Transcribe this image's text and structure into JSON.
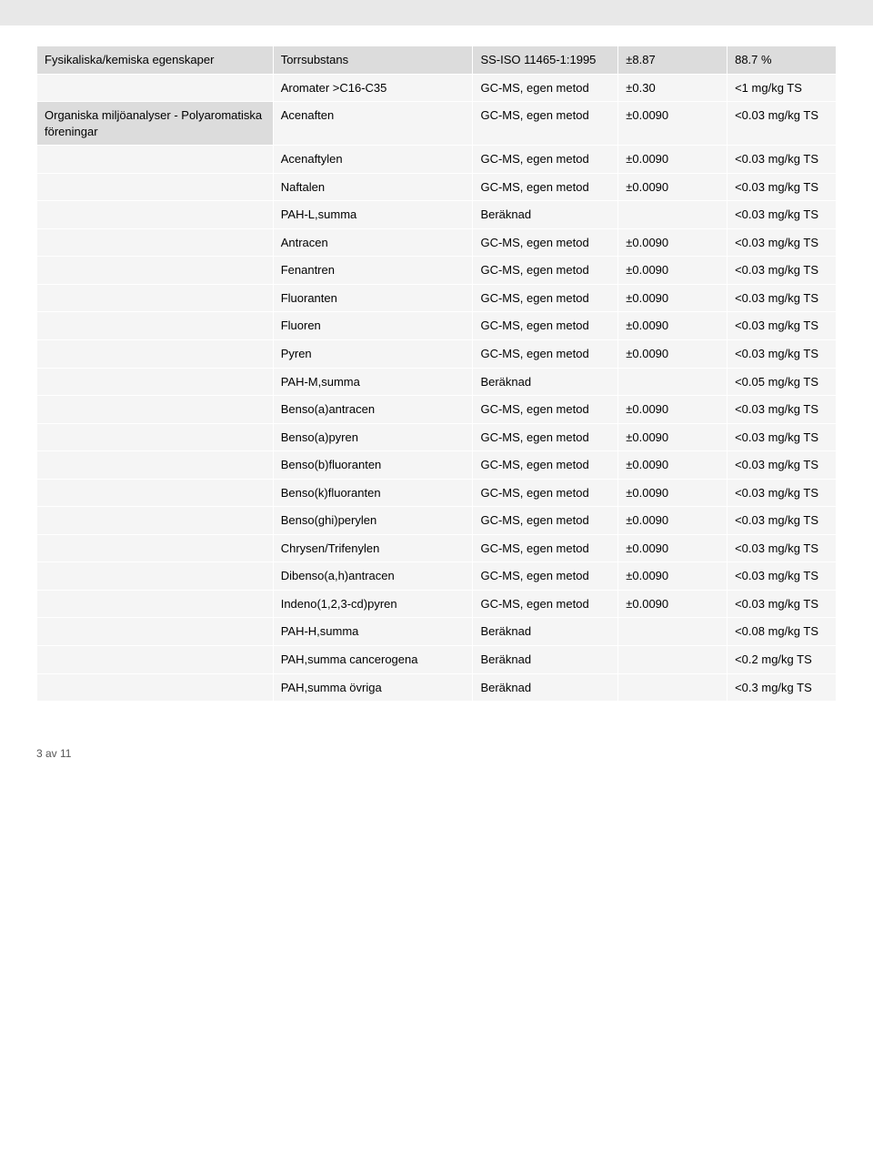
{
  "colors": {
    "shade": "#dcdcdc",
    "light": "#f5f5f5",
    "border": "#ffffff",
    "text": "#000000"
  },
  "t": {
    "r0": {
      "c1": "Fysikaliska/kemiska egenskaper",
      "c2": "Torrsubstans",
      "c3": "SS-ISO 11465-1:1995",
      "c4": "±8.87",
      "c5": "88.7 %"
    },
    "r1": {
      "c1": "",
      "c2": "Aromater >C16-C35",
      "c3": "GC-MS, egen metod",
      "c4": "±0.30",
      "c5": "<1 mg/kg TS"
    },
    "r2": {
      "c1": "Organiska miljöanalyser - Polyaromatiska föreningar",
      "c2": "Acenaften",
      "c3": "GC-MS, egen metod",
      "c4": "±0.0090",
      "c5": "<0.03 mg/kg TS"
    },
    "r3": {
      "c1": "",
      "c2": "Acenaftylen",
      "c3": "GC-MS, egen metod",
      "c4": "±0.0090",
      "c5": "<0.03 mg/kg TS"
    },
    "r4": {
      "c1": "",
      "c2": "Naftalen",
      "c3": "GC-MS, egen metod",
      "c4": "±0.0090",
      "c5": "<0.03 mg/kg TS"
    },
    "r5": {
      "c1": "",
      "c2": "PAH-L,summa",
      "c3": "Beräknad",
      "c4": "",
      "c5": "<0.03 mg/kg TS"
    },
    "r6": {
      "c1": "",
      "c2": "Antracen",
      "c3": "GC-MS, egen metod",
      "c4": "±0.0090",
      "c5": "<0.03 mg/kg TS"
    },
    "r7": {
      "c1": "",
      "c2": "Fenantren",
      "c3": "GC-MS, egen metod",
      "c4": "±0.0090",
      "c5": "<0.03 mg/kg TS"
    },
    "r8": {
      "c1": "",
      "c2": "Fluoranten",
      "c3": "GC-MS, egen metod",
      "c4": "±0.0090",
      "c5": "<0.03 mg/kg TS"
    },
    "r9": {
      "c1": "",
      "c2": "Fluoren",
      "c3": "GC-MS, egen metod",
      "c4": "±0.0090",
      "c5": "<0.03 mg/kg TS"
    },
    "r10": {
      "c1": "",
      "c2": "Pyren",
      "c3": "GC-MS, egen metod",
      "c4": "±0.0090",
      "c5": "<0.03 mg/kg TS"
    },
    "r11": {
      "c1": "",
      "c2": "PAH-M,summa",
      "c3": "Beräknad",
      "c4": "",
      "c5": "<0.05 mg/kg TS"
    },
    "r12": {
      "c1": "",
      "c2": "Benso(a)antracen",
      "c3": "GC-MS, egen metod",
      "c4": "±0.0090",
      "c5": "<0.03 mg/kg TS"
    },
    "r13": {
      "c1": "",
      "c2": "Benso(a)pyren",
      "c3": "GC-MS, egen metod",
      "c4": "±0.0090",
      "c5": "<0.03 mg/kg TS"
    },
    "r14": {
      "c1": "",
      "c2": "Benso(b)fluoranten",
      "c3": "GC-MS, egen metod",
      "c4": "±0.0090",
      "c5": "<0.03 mg/kg TS"
    },
    "r15": {
      "c1": "",
      "c2": "Benso(k)fluoranten",
      "c3": "GC-MS, egen metod",
      "c4": "±0.0090",
      "c5": "<0.03 mg/kg TS"
    },
    "r16": {
      "c1": "",
      "c2": "Benso(ghi)perylen",
      "c3": "GC-MS, egen metod",
      "c4": "±0.0090",
      "c5": "<0.03 mg/kg TS"
    },
    "r17": {
      "c1": "",
      "c2": "Chrysen/Trifenylen",
      "c3": "GC-MS, egen metod",
      "c4": "±0.0090",
      "c5": "<0.03 mg/kg TS"
    },
    "r18": {
      "c1": "",
      "c2": "Dibenso(a,h)antracen",
      "c3": "GC-MS, egen metod",
      "c4": "±0.0090",
      "c5": "<0.03 mg/kg TS"
    },
    "r19": {
      "c1": "",
      "c2": "Indeno(1,2,3-cd)pyren",
      "c3": "GC-MS, egen metod",
      "c4": "±0.0090",
      "c5": "<0.03 mg/kg TS"
    },
    "r20": {
      "c1": "",
      "c2": "PAH-H,summa",
      "c3": "Beräknad",
      "c4": "",
      "c5": "<0.08 mg/kg TS"
    },
    "r21": {
      "c1": "",
      "c2": "PAH,summa cancerogena",
      "c3": "Beräknad",
      "c4": "",
      "c5": "<0.2 mg/kg TS"
    },
    "r22": {
      "c1": "",
      "c2": "PAH,summa övriga",
      "c3": "Beräknad",
      "c4": "",
      "c5": "<0.3 mg/kg TS"
    }
  },
  "footer": "3 av 11"
}
